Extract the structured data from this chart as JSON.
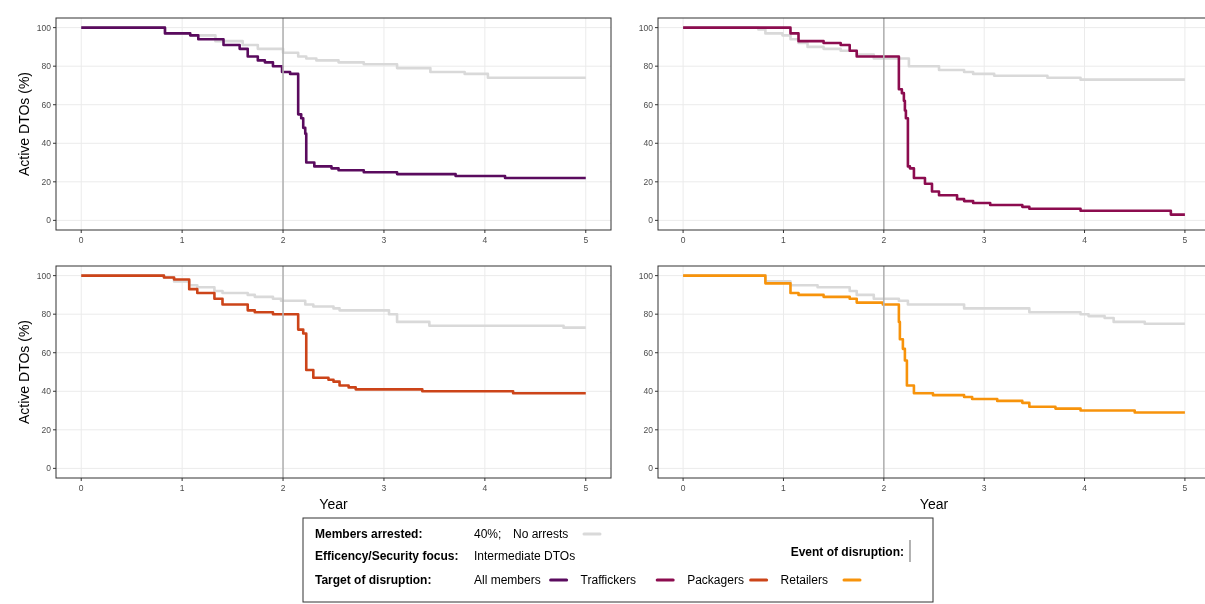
{
  "chart_data": [
    {
      "type": "step",
      "ylabel": "Active DTOs (%)",
      "xlim": [
        -0.25,
        5.25
      ],
      "ylim": [
        -5,
        105
      ],
      "xticks": [
        0,
        1,
        2,
        3,
        4,
        5
      ],
      "yticks": [
        0,
        20,
        40,
        60,
        80,
        100
      ],
      "grid": true,
      "legend": "bottom",
      "legend_title": "Target of disruption:",
      "annotations": [
        "Members arrested:",
        "40%;",
        "Efficency/Security focus:",
        "Intermediate DTOs"
      ],
      "ref_lines": [
        {
          "axis": "x",
          "value": 2,
          "label": "Event of disruption:",
          "color": "#b3b3b3"
        }
      ],
      "series": [
        {
          "name": "No arrests",
          "color": "#d9d9d9",
          "x": [
            0,
            0.83,
            1.08,
            1.33,
            1.6,
            1.75,
            2.0,
            2.15,
            2.23,
            2.33,
            2.55,
            2.8,
            3.13,
            3.46,
            3.8,
            4.03,
            5
          ],
          "values": [
            100,
            97,
            96,
            93,
            91,
            89,
            87,
            85,
            84,
            83,
            82,
            81,
            79,
            77,
            76,
            74,
            74
          ]
        },
        {
          "name": "All members",
          "color": "#5a0b5e",
          "x": [
            0,
            0.83,
            1.08,
            1.16,
            1.41,
            1.57,
            1.65,
            1.75,
            1.82,
            1.9,
            1.99,
            2.07,
            2.15,
            2.18,
            2.2,
            2.22,
            2.23,
            2.31,
            2.48,
            2.55,
            2.8,
            3.13,
            3.71,
            4.2,
            5
          ],
          "values": [
            100,
            97,
            96,
            94,
            91,
            89,
            85,
            83,
            82,
            80,
            77,
            76,
            55,
            53,
            48,
            45,
            30,
            28,
            27,
            26,
            25,
            24,
            23,
            22,
            22
          ]
        }
      ]
    },
    {
      "type": "step",
      "xlim": [
        -0.25,
        5.25
      ],
      "ylim": [
        -5,
        105
      ],
      "xticks": [
        0,
        1,
        2,
        3,
        4,
        5
      ],
      "yticks": [
        0,
        20,
        40,
        60,
        80,
        100
      ],
      "grid": true,
      "legend": "bottom",
      "ref_lines": [
        {
          "axis": "x",
          "value": 2,
          "color": "#b3b3b3"
        }
      ],
      "series": [
        {
          "name": "No arrests",
          "color": "#d9d9d9",
          "x": [
            0,
            0.75,
            0.82,
            0.99,
            1.07,
            1.15,
            1.24,
            1.4,
            1.57,
            1.73,
            1.9,
            2.25,
            2.55,
            2.8,
            2.89,
            3.1,
            3.63,
            3.96,
            5
          ],
          "values": [
            100,
            99,
            97,
            96,
            94,
            92,
            90,
            89,
            88,
            86,
            84,
            80,
            78,
            77,
            76,
            75,
            74,
            73,
            73
          ]
        },
        {
          "name": "Traffickers",
          "color": "#8c0c4f",
          "x": [
            0,
            1.07,
            1.15,
            1.4,
            1.57,
            1.66,
            1.73,
            2.15,
            2.18,
            2.2,
            2.21,
            2.22,
            2.24,
            2.26,
            2.3,
            2.41,
            2.48,
            2.55,
            2.73,
            2.8,
            2.89,
            3.06,
            3.38,
            3.45,
            3.96,
            4.86,
            5
          ],
          "values": [
            100,
            97,
            93,
            92,
            91,
            88,
            85,
            68,
            66,
            62,
            57,
            53,
            28,
            27,
            22,
            19,
            15,
            13,
            11,
            10,
            9,
            8,
            7,
            6,
            5,
            3,
            3
          ]
        }
      ]
    },
    {
      "type": "step",
      "xlabel": "Year",
      "ylabel": "Active DTOs (%)",
      "xlim": [
        -0.25,
        5.25
      ],
      "ylim": [
        -5,
        105
      ],
      "xticks": [
        0,
        1,
        2,
        3,
        4,
        5
      ],
      "yticks": [
        0,
        20,
        40,
        60,
        80,
        100
      ],
      "grid": true,
      "legend": "bottom",
      "ref_lines": [
        {
          "axis": "x",
          "value": 2,
          "color": "#b3b3b3"
        }
      ],
      "series": [
        {
          "name": "No arrests",
          "color": "#d9d9d9",
          "x": [
            0,
            0.82,
            0.92,
            1.07,
            1.15,
            1.32,
            1.4,
            1.65,
            1.72,
            1.9,
            1.98,
            2.22,
            2.3,
            2.5,
            2.56,
            3.05,
            3.13,
            3.45,
            4.78,
            5
          ],
          "values": [
            100,
            99,
            97,
            95,
            94,
            92,
            91,
            90,
            89,
            88,
            87,
            85,
            84,
            83,
            82,
            80,
            76,
            74,
            73,
            73
          ]
        },
        {
          "name": "Packagers",
          "color": "#cc4419",
          "x": [
            0,
            0.82,
            0.92,
            1.07,
            1.15,
            1.32,
            1.4,
            1.65,
            1.72,
            1.9,
            2.15,
            2.2,
            2.23,
            2.3,
            2.45,
            2.5,
            2.56,
            2.65,
            2.72,
            3.38,
            4.28,
            5
          ],
          "values": [
            100,
            99,
            98,
            93,
            91,
            88,
            85,
            82,
            81,
            80,
            72,
            70,
            51,
            47,
            46,
            45,
            43,
            42,
            41,
            40,
            39,
            39
          ]
        }
      ]
    },
    {
      "type": "step",
      "xlabel": "Year",
      "xlim": [
        -0.25,
        5.25
      ],
      "ylim": [
        -5,
        105
      ],
      "xticks": [
        0,
        1,
        2,
        3,
        4,
        5
      ],
      "yticks": [
        0,
        20,
        40,
        60,
        80,
        100
      ],
      "grid": true,
      "legend": "bottom",
      "ref_lines": [
        {
          "axis": "x",
          "value": 2,
          "color": "#b3b3b3"
        }
      ],
      "series": [
        {
          "name": "No arrests",
          "color": "#d9d9d9",
          "x": [
            0,
            0.82,
            1.07,
            1.34,
            1.66,
            1.73,
            1.9,
            2.15,
            2.24,
            2.8,
            3.45,
            3.96,
            4.04,
            4.2,
            4.29,
            4.6,
            5
          ],
          "values": [
            100,
            97,
            95,
            94,
            92,
            90,
            88,
            87,
            85,
            83,
            81,
            80,
            79,
            78,
            76,
            75,
            75
          ]
        },
        {
          "name": "Retailers",
          "color": "#f7930b",
          "x": [
            0,
            0.82,
            1.07,
            1.15,
            1.4,
            1.66,
            1.73,
            1.99,
            2.15,
            2.16,
            2.19,
            2.21,
            2.23,
            2.3,
            2.49,
            2.8,
            2.88,
            3.13,
            3.38,
            3.45,
            3.71,
            3.96,
            4.5,
            5
          ],
          "values": [
            100,
            96,
            91,
            90,
            89,
            88,
            86,
            85,
            76,
            67,
            62,
            56,
            43,
            39,
            38,
            37,
            36,
            35,
            34,
            32,
            31,
            30,
            29,
            29
          ]
        }
      ]
    }
  ]
}
